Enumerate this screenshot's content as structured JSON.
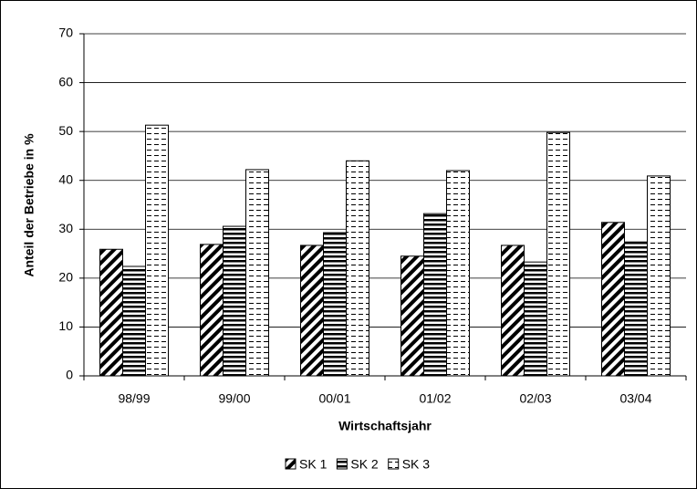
{
  "chart_data": {
    "type": "bar",
    "x_label": "Wirtschaftsjahr",
    "y_label": "Anteil der Betriebe in %",
    "categories": [
      "98/99",
      "99/00",
      "00/01",
      "01/02",
      "02/03",
      "03/04"
    ],
    "series": [
      {
        "name": "SK 1",
        "color": "#000000",
        "pattern": "diagonal",
        "values": [
          25.9,
          26.9,
          26.7,
          24.5,
          26.7,
          31.4
        ]
      },
      {
        "name": "SK 2",
        "color": "#000000",
        "pattern": "horizontal",
        "values": [
          22.4,
          30.6,
          29.3,
          33.2,
          23.3,
          27.4
        ]
      },
      {
        "name": "SK 3",
        "color": "#000000",
        "pattern": "dashed",
        "values": [
          51.3,
          42.2,
          44.0,
          42.0,
          49.8,
          40.9
        ]
      }
    ],
    "ylim": [
      0,
      70
    ],
    "yticks": [
      0,
      10,
      20,
      30,
      40,
      50,
      60,
      70
    ],
    "grid": true,
    "legend": "bottom"
  }
}
